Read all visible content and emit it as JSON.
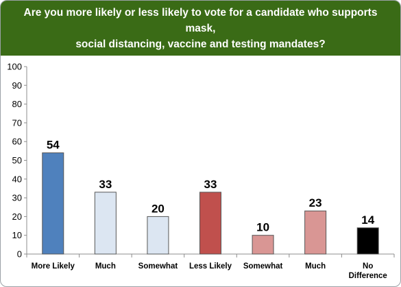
{
  "chart_data": {
    "type": "bar",
    "title": "Are you more likely or less likely to vote for a candidate who supports mask,\nsocial distancing, vaccine and testing mandates?",
    "categories": [
      "More Likely",
      "Much",
      "Somewhat",
      "Less Likely",
      "Somewhat",
      "Much",
      "No\nDifference"
    ],
    "values": [
      54,
      33,
      20,
      33,
      10,
      23,
      14
    ],
    "bar_colors": [
      "#4f81bd",
      "#dce6f2",
      "#dce6f2",
      "#c0504d",
      "#d99694",
      "#d99694",
      "#000000"
    ],
    "ylim": [
      0,
      100
    ],
    "yticks": [
      0,
      10,
      20,
      30,
      40,
      50,
      60,
      70,
      80,
      90,
      100
    ],
    "xlabel": "",
    "ylabel": "",
    "grid": false,
    "legend": "none"
  },
  "colors": {
    "header_bg": "#3a6b16",
    "title_text": "#ffffff",
    "bar_outline": "#555555"
  }
}
